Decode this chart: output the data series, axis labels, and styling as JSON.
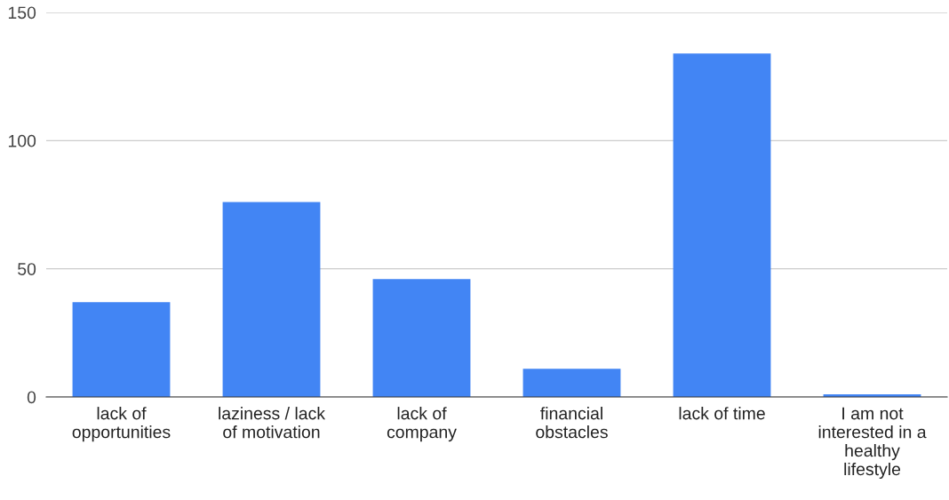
{
  "chart_data": {
    "type": "bar",
    "categories": [
      "lack of\nopportunities",
      "laziness / lack\nof motivation",
      "lack of\ncompany",
      "financial\nobstacles",
      "lack of time",
      "I am not\ninterested in a\nhealthy\nlifestyle"
    ],
    "values": [
      37,
      76,
      46,
      11,
      134,
      1
    ],
    "color": "#4285f4",
    "ylim": [
      0,
      150
    ],
    "yticks": [
      0,
      50,
      100,
      150
    ],
    "grid": "y"
  }
}
